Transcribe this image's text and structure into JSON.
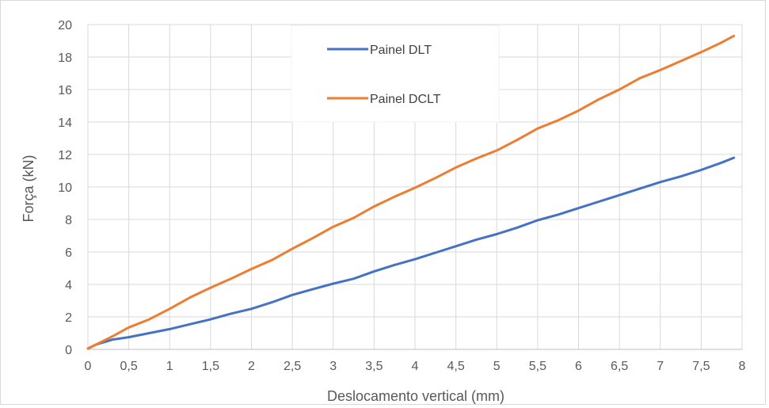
{
  "chart_data": {
    "type": "line",
    "title": "",
    "xlabel": "Deslocamento vertical (mm)",
    "ylabel": "Força (kN)",
    "xlim": [
      0,
      8
    ],
    "ylim": [
      0,
      20
    ],
    "x_ticks": [
      0,
      0.5,
      1,
      1.5,
      2,
      2.5,
      3,
      3.5,
      4,
      4.5,
      5,
      5.5,
      6,
      6.5,
      7,
      7.5,
      8
    ],
    "x_tick_labels": [
      "0",
      "0,5",
      "1",
      "1,5",
      "2",
      "2,5",
      "3",
      "3,5",
      "4",
      "4,5",
      "5",
      "5,5",
      "6",
      "6,5",
      "7",
      "7,5",
      "8"
    ],
    "y_ticks": [
      0,
      2,
      4,
      6,
      8,
      10,
      12,
      14,
      16,
      18,
      20
    ],
    "y_tick_labels": [
      "0",
      "2",
      "4",
      "6",
      "8",
      "10",
      "12",
      "14",
      "16",
      "18",
      "20"
    ],
    "grid": true,
    "legend_position": "top-center",
    "series": [
      {
        "name": "Painel DLT",
        "color": "#4472C4",
        "x": [
          0,
          0.1,
          0.2,
          0.3,
          0.5,
          0.75,
          1.0,
          1.25,
          1.5,
          1.75,
          2.0,
          2.25,
          2.5,
          2.75,
          3.0,
          3.25,
          3.5,
          3.75,
          4.0,
          4.25,
          4.5,
          4.75,
          5.0,
          5.25,
          5.5,
          5.75,
          6.0,
          6.25,
          6.5,
          6.75,
          7.0,
          7.25,
          7.5,
          7.75,
          7.9
        ],
        "y": [
          0.05,
          0.3,
          0.45,
          0.6,
          0.75,
          1.0,
          1.25,
          1.55,
          1.85,
          2.2,
          2.5,
          2.9,
          3.35,
          3.7,
          4.05,
          4.35,
          4.8,
          5.2,
          5.55,
          5.95,
          6.35,
          6.75,
          7.1,
          7.5,
          7.95,
          8.3,
          8.7,
          9.1,
          9.5,
          9.9,
          10.3,
          10.65,
          11.05,
          11.5,
          11.8
        ]
      },
      {
        "name": "Painel DCLT",
        "color": "#ED7D31",
        "x": [
          0,
          0.1,
          0.2,
          0.3,
          0.5,
          0.75,
          1.0,
          1.25,
          1.5,
          1.75,
          2.0,
          2.25,
          2.5,
          2.75,
          3.0,
          3.25,
          3.5,
          3.75,
          4.0,
          4.25,
          4.5,
          4.75,
          5.0,
          5.25,
          5.5,
          5.75,
          6.0,
          6.25,
          6.5,
          6.75,
          7.0,
          7.25,
          7.5,
          7.75,
          7.9
        ],
        "y": [
          0.05,
          0.3,
          0.55,
          0.8,
          1.35,
          1.85,
          2.5,
          3.2,
          3.8,
          4.35,
          4.95,
          5.5,
          6.2,
          6.85,
          7.55,
          8.1,
          8.8,
          9.4,
          9.95,
          10.55,
          11.2,
          11.75,
          12.25,
          12.9,
          13.6,
          14.1,
          14.7,
          15.4,
          16.0,
          16.7,
          17.2,
          17.75,
          18.3,
          18.9,
          19.3
        ]
      }
    ]
  }
}
